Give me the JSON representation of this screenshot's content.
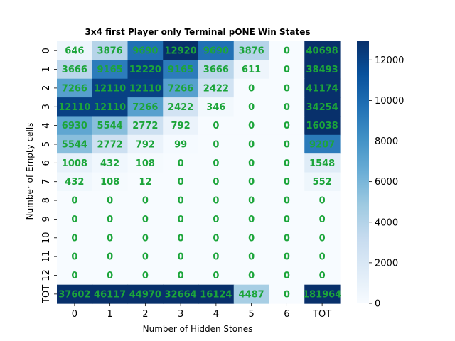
{
  "chart_data": {
    "type": "heatmap",
    "title": "3x4 first Player only Terminal pONE Win States",
    "xlabel": "Number of Hidden Stones",
    "ylabel": "Number of Empty cells",
    "x_categories": [
      "0",
      "1",
      "2",
      "3",
      "4",
      "5",
      "6",
      "TOT"
    ],
    "y_categories": [
      "0",
      "1",
      "2",
      "3",
      "4",
      "5",
      "6",
      "7",
      "8",
      "9",
      "10",
      "11",
      "12",
      "TOT"
    ],
    "values": [
      [
        646,
        3876,
        9690,
        12920,
        9690,
        3876,
        0,
        40698
      ],
      [
        3666,
        9165,
        12220,
        9165,
        3666,
        611,
        0,
        38493
      ],
      [
        7266,
        12110,
        12110,
        7266,
        2422,
        0,
        0,
        41174
      ],
      [
        12110,
        12110,
        7266,
        2422,
        346,
        0,
        0,
        34254
      ],
      [
        6930,
        5544,
        2772,
        792,
        0,
        0,
        0,
        16038
      ],
      [
        5544,
        2772,
        792,
        99,
        0,
        0,
        0,
        9207
      ],
      [
        1008,
        432,
        108,
        0,
        0,
        0,
        0,
        1548
      ],
      [
        432,
        108,
        12,
        0,
        0,
        0,
        0,
        552
      ],
      [
        0,
        0,
        0,
        0,
        0,
        0,
        0,
        0
      ],
      [
        0,
        0,
        0,
        0,
        0,
        0,
        0,
        0
      ],
      [
        0,
        0,
        0,
        0,
        0,
        0,
        0,
        0
      ],
      [
        0,
        0,
        0,
        0,
        0,
        0,
        0,
        0
      ],
      [
        0,
        0,
        0,
        0,
        0,
        0,
        0,
        0
      ],
      [
        37602,
        46117,
        44970,
        32664,
        16124,
        4487,
        0,
        181964
      ]
    ],
    "colormap": "Blues",
    "color_range": [
      0,
      12920
    ],
    "colorbar_ticks": [
      0,
      2000,
      4000,
      6000,
      8000,
      10000,
      12000
    ],
    "annotation_color": "#1ca53a",
    "grid": false,
    "legend": "colorbar-right"
  }
}
